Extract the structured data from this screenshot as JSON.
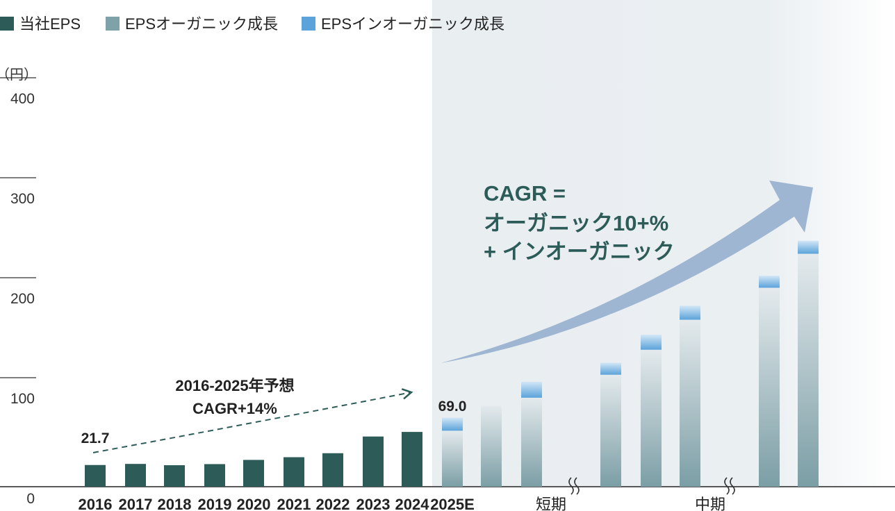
{
  "legend": [
    {
      "label": "当社EPS",
      "color": "#2d5c58"
    },
    {
      "label": "EPSオーガニック成長",
      "color": "#7fa2a8"
    },
    {
      "label": "EPSインオーガニック成長",
      "color": "#5ba3da"
    }
  ],
  "axis": {
    "unit": "（円）",
    "ticks": [
      0,
      100,
      200,
      300,
      400
    ]
  },
  "annotations": {
    "cagr_hist_line1": "2016-2025年予想",
    "cagr_hist_line2": "CAGR+14%",
    "cagr_future_line1": "CAGR =",
    "cagr_future_line2": "オーガニック10+%",
    "cagr_future_line3": "+ インオーガニック",
    "label_2016": "21.7",
    "label_2025": "69.0"
  },
  "chart_data": {
    "type": "bar",
    "title": "",
    "ylabel": "（円）",
    "ylim": [
      0,
      400
    ],
    "grid": false,
    "legend_position": "top-left",
    "categories": [
      "2016",
      "2017",
      "2018",
      "2019",
      "2020",
      "2021",
      "2022",
      "2023",
      "2024",
      "2025E",
      "短期",
      "",
      "",
      "中期",
      "",
      "",
      "",
      ""
    ],
    "group_labels": [
      {
        "label": "2016",
        "bars": [
          0
        ]
      },
      {
        "label": "2017",
        "bars": [
          1
        ]
      },
      {
        "label": "2018",
        "bars": [
          2
        ]
      },
      {
        "label": "2019",
        "bars": [
          3
        ]
      },
      {
        "label": "2020",
        "bars": [
          4
        ]
      },
      {
        "label": "2021",
        "bars": [
          5
        ]
      },
      {
        "label": "2022",
        "bars": [
          6
        ]
      },
      {
        "label": "2023",
        "bars": [
          7
        ]
      },
      {
        "label": "2024",
        "bars": [
          8
        ]
      },
      {
        "label": "2025E",
        "bars": [
          9
        ]
      },
      {
        "label": "短期",
        "bars": [
          10,
          11,
          12
        ]
      },
      {
        "label": "中期",
        "bars": [
          13,
          14,
          15
        ]
      }
    ],
    "series": [
      {
        "name": "当社EPS",
        "values": [
          21.7,
          22.8,
          21.5,
          22.6,
          26.8,
          29.5,
          33.5,
          50.2,
          54.8,
          null,
          null,
          null,
          null,
          null,
          null,
          null,
          null,
          null
        ]
      },
      {
        "name": "EPSオーガニック成長",
        "values": [
          null,
          null,
          null,
          null,
          null,
          null,
          null,
          null,
          null,
          56.0,
          81.0,
          89.0,
          112.0,
          137.0,
          167.0,
          199.0,
          233.0,
          248.0
        ]
      },
      {
        "name": "EPSインオーガニック成長",
        "values": [
          null,
          null,
          null,
          null,
          null,
          null,
          null,
          null,
          null,
          13.0,
          0.0,
          16.0,
          12.0,
          15.0,
          14.0,
          12.0,
          13.0,
          14.0
        ]
      }
    ]
  }
}
